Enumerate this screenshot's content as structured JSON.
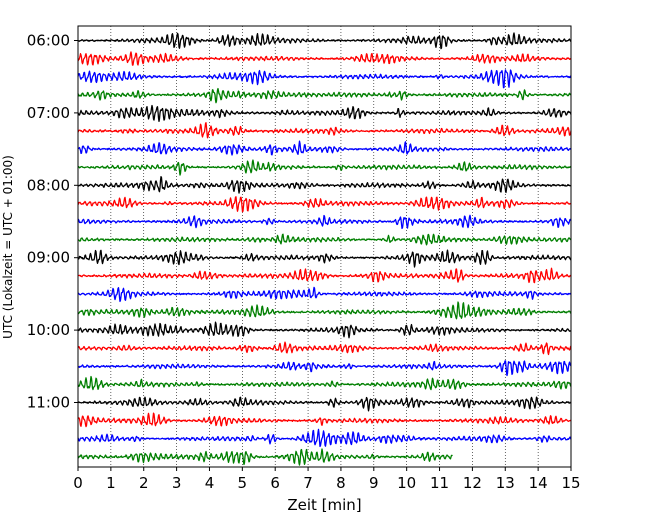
{
  "chart_data": {
    "type": "line",
    "title": "",
    "xlabel": "Zeit  [min]",
    "ylabel": "UTC (Lokalzeit = UTC + 01:00)",
    "xlim": [
      0,
      15
    ],
    "x_ticks": [
      "0",
      "1",
      "2",
      "3",
      "4",
      "5",
      "6",
      "7",
      "8",
      "9",
      "10",
      "11",
      "12",
      "13",
      "14",
      "15"
    ],
    "y_tick_labels": [
      "06:00",
      "07:00",
      "08:00",
      "09:00",
      "10:00",
      "11:00"
    ],
    "row_interval_minutes": 15,
    "start_time": "06:00",
    "row_count": 24,
    "last_row_end_minute": 11.4,
    "grid": "vertical dotted",
    "series_colors": [
      "#000000",
      "#ff0000",
      "#0000ff",
      "#007f00"
    ]
  }
}
